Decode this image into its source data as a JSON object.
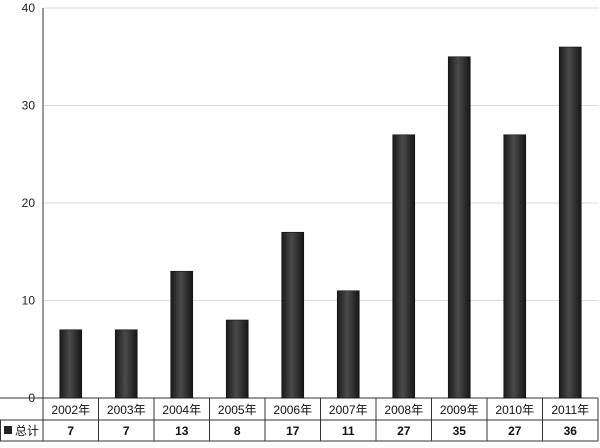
{
  "chart_data": {
    "type": "bar",
    "title": "",
    "xlabel": "",
    "ylabel": "",
    "ylim": [
      0,
      40
    ],
    "yticks": [
      0,
      10,
      20,
      30,
      40
    ],
    "grid": true,
    "legend": "data-table",
    "categories": [
      "2002年",
      "2003年",
      "2004年",
      "2005年",
      "2006年",
      "2007年",
      "2008年",
      "2009年",
      "2010年",
      "2011年"
    ],
    "series": [
      {
        "name": "总计",
        "values": [
          7,
          7,
          13,
          8,
          17,
          11,
          27,
          35,
          27,
          36
        ],
        "color": "#2b2b2b"
      }
    ]
  }
}
